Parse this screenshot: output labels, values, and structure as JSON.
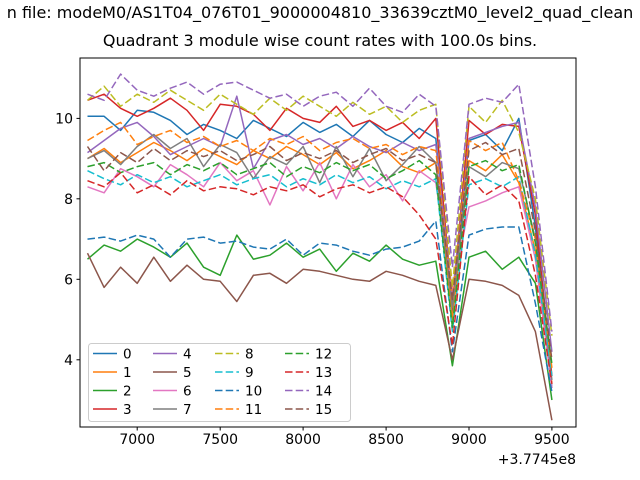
{
  "figure": {
    "title_line1": "n file: modeM0/AS1T04_076T01_9000004810_33639cztM0_level2_quad_clean",
    "title_line2": "Quadrant 3 module wise count rates with 100.0s bins."
  },
  "colors": {
    "axes": "#000000",
    "legend_border": "#cccccc",
    "background": "#ffffff"
  },
  "chart_data": {
    "type": "line",
    "title": "Quadrant 3 module wise count rates with 100.0s bins.",
    "xlabel": "",
    "ylabel": "",
    "x_offset_label": "+3.7745e8",
    "xticks": [
      7000,
      7500,
      8000,
      8500,
      9000,
      9500
    ],
    "yticks": [
      4,
      6,
      8,
      10
    ],
    "xlim": [
      6655,
      9645
    ],
    "ylim": [
      2.33,
      11.5
    ],
    "grid": false,
    "legend_position": "lower left",
    "legend_columns": 4,
    "x": [
      6700,
      6800,
      6900,
      7000,
      7100,
      7200,
      7300,
      7400,
      7500,
      7600,
      7700,
      7800,
      7900,
      8000,
      8100,
      8200,
      8300,
      8400,
      8500,
      8600,
      8700,
      8800,
      8900,
      9000,
      9100,
      9200,
      9300,
      9400,
      9500
    ],
    "series": [
      {
        "name": "0",
        "color": "#1f77b4",
        "style": "solid",
        "values": [
          10.05,
          10.05,
          9.7,
          10.2,
          10.15,
          9.95,
          9.6,
          9.85,
          9.7,
          9.5,
          9.95,
          9.75,
          9.55,
          9.9,
          9.65,
          9.85,
          9.55,
          9.95,
          9.6,
          9.4,
          9.75,
          9.5,
          5.2,
          9.45,
          9.6,
          9.2,
          10.0,
          7.3,
          3.3
        ]
      },
      {
        "name": "1",
        "color": "#ff7f0e",
        "style": "solid",
        "values": [
          9.0,
          9.25,
          8.9,
          9.15,
          9.4,
          9.2,
          8.95,
          9.25,
          9.05,
          8.85,
          9.2,
          9.0,
          9.3,
          9.1,
          8.85,
          9.15,
          8.75,
          8.95,
          9.2,
          8.8,
          8.65,
          8.9,
          5.0,
          8.95,
          8.7,
          9.1,
          8.4,
          6.7,
          3.4
        ]
      },
      {
        "name": "2",
        "color": "#2ca02c",
        "style": "solid",
        "values": [
          6.5,
          6.85,
          6.7,
          7.0,
          6.8,
          6.55,
          6.9,
          6.3,
          6.1,
          7.1,
          6.5,
          6.6,
          6.9,
          6.55,
          6.75,
          6.2,
          6.65,
          6.45,
          6.85,
          6.5,
          6.35,
          6.45,
          3.85,
          6.55,
          6.7,
          6.25,
          6.55,
          5.9,
          3.0
        ]
      },
      {
        "name": "3",
        "color": "#d62728",
        "style": "solid",
        "values": [
          10.45,
          10.6,
          10.25,
          10.05,
          10.25,
          10.5,
          10.2,
          9.7,
          10.35,
          10.3,
          10.1,
          9.7,
          10.25,
          10.0,
          9.9,
          10.3,
          9.8,
          9.95,
          9.7,
          9.9,
          9.5,
          10.0,
          5.4,
          9.95,
          9.6,
          9.85,
          9.8,
          7.6,
          3.6
        ]
      },
      {
        "name": "4",
        "color": "#9467bd",
        "style": "solid",
        "values": [
          9.15,
          9.45,
          9.75,
          9.9,
          9.55,
          9.1,
          9.3,
          9.5,
          9.3,
          10.55,
          8.75,
          9.45,
          9.6,
          9.35,
          9.5,
          9.25,
          9.55,
          9.3,
          9.15,
          9.4,
          9.2,
          9.35,
          5.6,
          9.5,
          9.65,
          9.8,
          9.9,
          7.8,
          4.2
        ]
      },
      {
        "name": "5",
        "color": "#8c564b",
        "style": "solid",
        "values": [
          6.65,
          5.8,
          6.3,
          5.9,
          6.55,
          5.95,
          6.35,
          6.0,
          5.95,
          5.45,
          6.1,
          6.15,
          5.9,
          6.25,
          6.2,
          6.1,
          6.0,
          5.95,
          6.2,
          6.1,
          5.95,
          5.85,
          4.0,
          6.0,
          5.95,
          5.85,
          5.6,
          4.7,
          2.5
        ]
      },
      {
        "name": "6",
        "color": "#e377c2",
        "style": "solid",
        "values": [
          8.3,
          8.15,
          8.75,
          8.55,
          8.3,
          8.85,
          8.6,
          8.3,
          8.9,
          8.45,
          8.7,
          7.85,
          8.8,
          8.2,
          8.9,
          8.0,
          8.85,
          8.3,
          8.6,
          7.95,
          8.7,
          8.4,
          5.7,
          7.8,
          7.95,
          8.15,
          8.3,
          6.5,
          3.3
        ]
      },
      {
        "name": "7",
        "color": "#7f7f7f",
        "style": "solid",
        "values": [
          9.0,
          9.2,
          8.85,
          9.3,
          9.6,
          9.25,
          9.5,
          8.8,
          9.35,
          9.15,
          8.5,
          9.05,
          8.85,
          9.3,
          8.4,
          9.3,
          8.55,
          9.25,
          8.45,
          8.85,
          9.3,
          8.9,
          5.3,
          8.8,
          8.55,
          8.9,
          8.75,
          7.0,
          3.5
        ]
      },
      {
        "name": "8",
        "color": "#bcbd22",
        "style": "dashed",
        "values": [
          10.45,
          10.8,
          10.3,
          10.6,
          10.4,
          10.7,
          10.45,
          10.2,
          10.6,
          10.35,
          10.1,
          10.5,
          10.2,
          10.55,
          10.3,
          10.05,
          10.4,
          10.1,
          10.3,
          9.9,
          10.2,
          10.35,
          5.8,
          10.3,
          9.9,
          10.45,
          9.65,
          8.0,
          4.6
        ]
      },
      {
        "name": "9",
        "color": "#17becf",
        "style": "dashed",
        "values": [
          8.7,
          8.5,
          8.35,
          8.6,
          8.4,
          8.55,
          8.3,
          8.45,
          8.6,
          8.35,
          8.5,
          8.6,
          8.3,
          8.5,
          8.35,
          8.6,
          8.4,
          8.55,
          8.25,
          8.45,
          8.3,
          8.5,
          4.7,
          8.35,
          8.5,
          8.3,
          8.55,
          6.6,
          3.6
        ]
      },
      {
        "name": "10",
        "color": "#1f77b4",
        "style": "dashed",
        "values": [
          7.0,
          7.05,
          6.95,
          7.1,
          7.0,
          6.55,
          7.0,
          7.05,
          6.9,
          6.95,
          6.8,
          6.75,
          7.0,
          6.6,
          6.9,
          6.85,
          6.7,
          6.6,
          6.75,
          6.8,
          6.95,
          7.45,
          4.2,
          7.1,
          7.25,
          7.3,
          7.3,
          5.4,
          3.2
        ]
      },
      {
        "name": "11",
        "color": "#ff7f0e",
        "style": "dashed",
        "values": [
          9.45,
          9.7,
          9.9,
          9.35,
          9.55,
          9.7,
          9.4,
          9.55,
          9.3,
          9.45,
          9.2,
          9.5,
          9.35,
          9.55,
          9.2,
          9.4,
          9.5,
          9.25,
          9.35,
          9.1,
          9.3,
          9.2,
          5.5,
          9.45,
          9.2,
          9.4,
          8.45,
          7.0,
          3.8
        ]
      },
      {
        "name": "12",
        "color": "#2ca02c",
        "style": "dashed",
        "values": [
          8.8,
          8.9,
          8.65,
          8.8,
          8.9,
          8.6,
          8.85,
          8.7,
          8.9,
          8.6,
          8.75,
          8.9,
          8.55,
          8.8,
          8.65,
          8.9,
          8.7,
          8.85,
          8.5,
          8.7,
          8.95,
          8.6,
          4.8,
          8.8,
          8.95,
          8.7,
          8.85,
          6.9,
          3.9
        ]
      },
      {
        "name": "13",
        "color": "#d62728",
        "style": "dashed",
        "values": [
          8.45,
          8.3,
          8.65,
          8.15,
          8.35,
          8.1,
          8.45,
          8.2,
          8.3,
          8.25,
          8.1,
          8.3,
          8.2,
          8.35,
          8.05,
          8.25,
          8.35,
          8.15,
          8.3,
          8.05,
          7.6,
          7.0,
          4.35,
          8.55,
          8.1,
          8.35,
          7.95,
          6.1,
          3.4
        ]
      },
      {
        "name": "14",
        "color": "#9467bd",
        "style": "dashed",
        "values": [
          10.6,
          10.45,
          11.1,
          10.7,
          10.55,
          10.75,
          10.9,
          10.6,
          10.85,
          10.9,
          10.7,
          10.5,
          10.6,
          10.3,
          10.55,
          10.65,
          10.3,
          10.75,
          10.3,
          10.15,
          10.6,
          10.3,
          6.3,
          10.35,
          10.5,
          10.4,
          10.85,
          8.3,
          4.7
        ]
      },
      {
        "name": "15",
        "color": "#8c564b",
        "style": "dashed",
        "values": [
          9.3,
          8.7,
          9.15,
          8.9,
          9.25,
          8.95,
          9.2,
          9.05,
          9.2,
          8.95,
          9.1,
          9.3,
          8.95,
          9.15,
          9.0,
          9.2,
          8.9,
          9.1,
          9.25,
          8.95,
          9.1,
          8.9,
          5.5,
          9.2,
          9.4,
          9.1,
          9.25,
          7.2,
          4.0
        ]
      }
    ]
  }
}
